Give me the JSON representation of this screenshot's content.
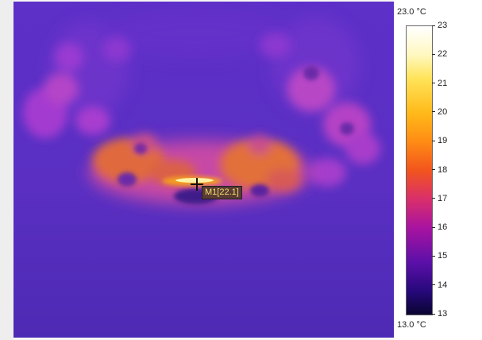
{
  "marker": {
    "label": "M1[22.1]"
  },
  "scale": {
    "max_label": "23.0 °C",
    "min_label": "13.0 °C",
    "ticks": [
      "23",
      "22",
      "21",
      "20",
      "19",
      "18",
      "17",
      "16",
      "15",
      "14",
      "13"
    ]
  },
  "colors": {
    "background": "#5a2ec6",
    "warm": "#e06a36",
    "hot": "#fff6b0"
  }
}
